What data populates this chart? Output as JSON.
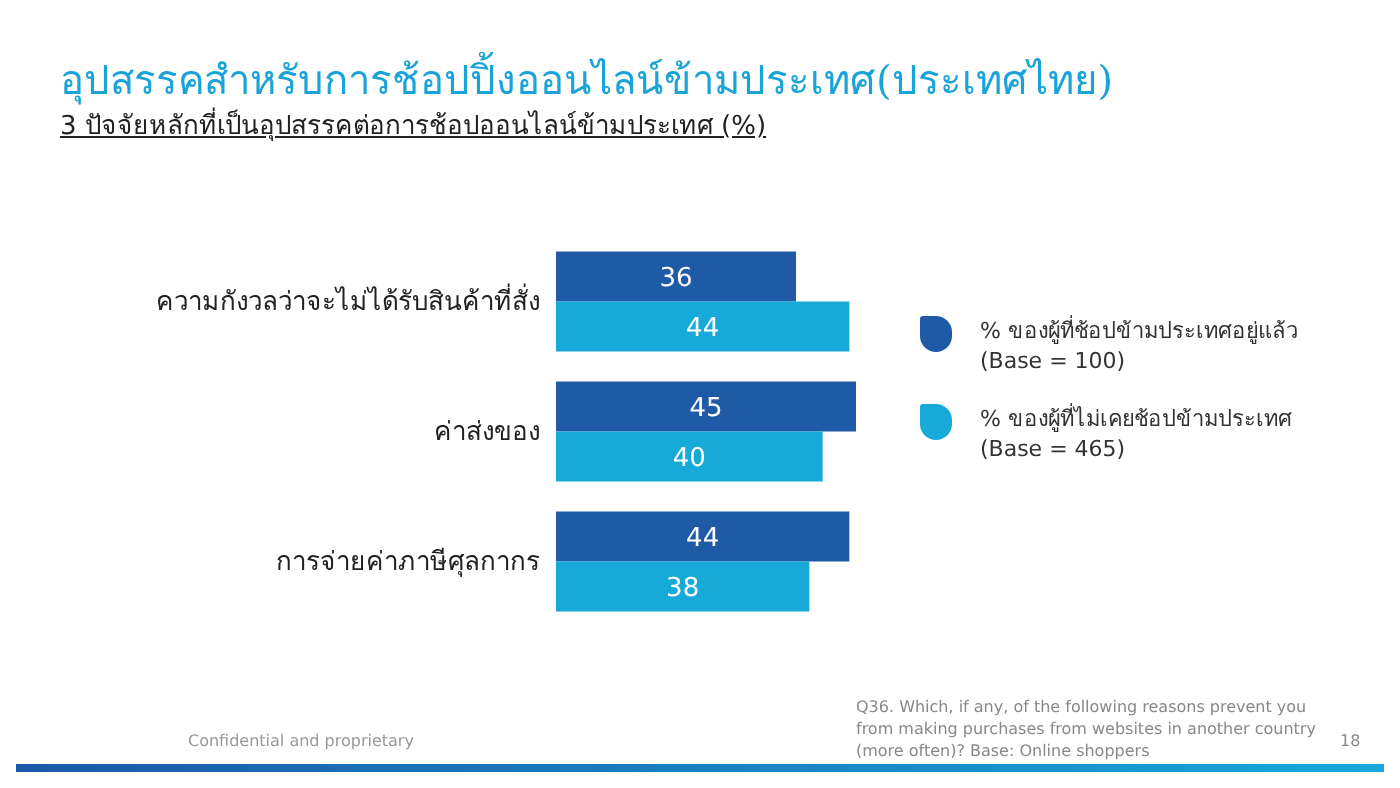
{
  "chart_data": {
    "type": "bar",
    "orientation": "horizontal",
    "title": "อุปสรรคสำหรับการช้อปปิ้งออนไลน์ข้ามประเทศ(ประเทศไทย)",
    "subtitle": "3 ปัจจัยหลักที่เป็นอุปสรรคต่อการช้อปออนไลน์ข้ามประเทศ (%)",
    "categories": [
      "ความกังวลว่าจะไม่ได้รับสินค้าที่สั่ง",
      "ค่าส่งของ",
      "การจ่ายค่าภาษีศุลกากร"
    ],
    "series": [
      {
        "name": "% ของผู้ที่ช้อปข้ามประเทศอยู่แล้ว (Base = 100)",
        "color": "#1f5aa6",
        "values": [
          36,
          45,
          44
        ]
      },
      {
        "name": "% ของผู้ที่ไม่เคยช้อปข้ามประเทศ (Base = 465)",
        "color": "#17a9d8",
        "values": [
          44,
          40,
          38
        ]
      }
    ],
    "data_labels": true,
    "legend": "right",
    "annotations": [
      "Confidential and proprietary",
      "Q36. Which, if any, of the following reasons prevent you from making purchases from websites in another country (more often)? Base: Online shoppers",
      "18"
    ]
  }
}
